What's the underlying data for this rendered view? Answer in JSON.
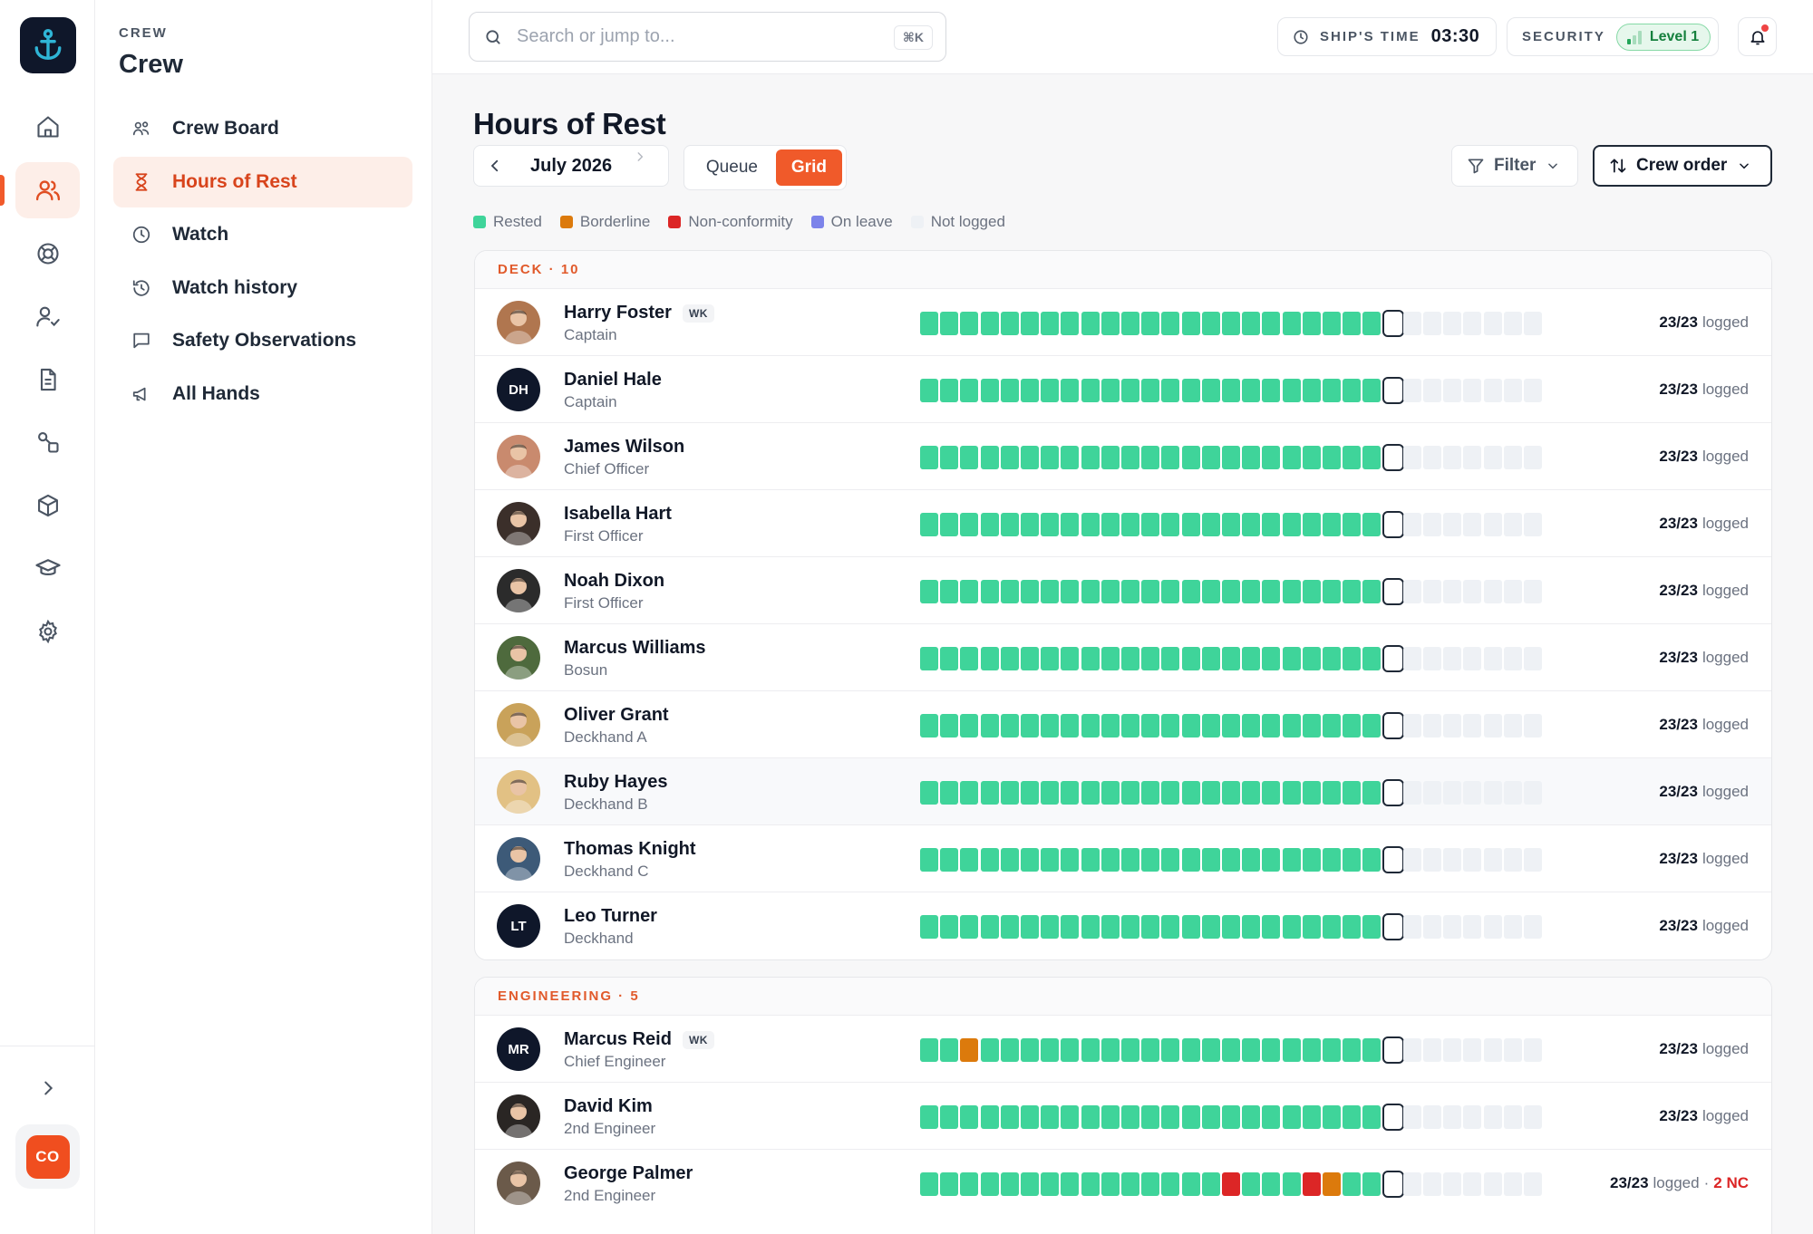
{
  "app": {
    "user_initials": "CO"
  },
  "colors": {
    "accent": "#f05a2a",
    "rested": "#3fd49a",
    "borderline": "#dc7a0c",
    "nonconformity": "#dc2626",
    "onleave": "#7c83ea",
    "notlogged": "#eef1f5"
  },
  "rail": {
    "items": [
      {
        "name": "home-icon",
        "active": false
      },
      {
        "name": "crew-icon",
        "active": true
      },
      {
        "name": "lifebuoy-icon",
        "active": false
      },
      {
        "name": "user-check-icon",
        "active": false
      },
      {
        "name": "document-icon",
        "active": false
      },
      {
        "name": "workflow-icon",
        "active": false
      },
      {
        "name": "cube-icon",
        "active": false
      },
      {
        "name": "graduation-cap-icon",
        "active": false
      },
      {
        "name": "settings-icon",
        "active": false
      }
    ]
  },
  "sidebar": {
    "eyebrow": "CREW",
    "title": "Crew",
    "items": [
      {
        "label": "Crew Board",
        "icon": "crew-board-icon",
        "active": false
      },
      {
        "label": "Hours of Rest",
        "icon": "hourglass-icon",
        "active": true
      },
      {
        "label": "Watch",
        "icon": "clock-icon",
        "active": false
      },
      {
        "label": "Watch history",
        "icon": "history-icon",
        "active": false
      },
      {
        "label": "Safety Observations",
        "icon": "message-icon",
        "active": false
      },
      {
        "label": "All Hands",
        "icon": "megaphone-icon",
        "active": false
      }
    ]
  },
  "topbar": {
    "search_placeholder": "Search or jump to...",
    "search_shortcut": "⌘K",
    "ships_time_label": "SHIP'S TIME",
    "ships_time_value": "03:30",
    "security_label": "SECURITY",
    "security_level": "Level 1"
  },
  "page": {
    "title": "Hours of Rest",
    "month": "July 2026",
    "view_tabs": [
      {
        "label": "Queue",
        "active": false
      },
      {
        "label": "Grid",
        "active": true
      }
    ],
    "filter_label": "Filter",
    "order_label": "Crew order",
    "logged_suffix": "logged"
  },
  "legend": [
    {
      "label": "Rested",
      "color": "#3fd49a"
    },
    {
      "label": "Borderline",
      "color": "#dc7a0c"
    },
    {
      "label": "Non-conformity",
      "color": "#dc2626"
    },
    {
      "label": "On leave",
      "color": "#7c83ea"
    },
    {
      "label": "Not logged",
      "color": "#eef1f5"
    }
  ],
  "groups": [
    {
      "header": "DECK · 10",
      "rows": [
        {
          "name": "Harry Foster",
          "badge": "WK",
          "role": "Captain",
          "avatar": "photo",
          "bg": "#b0764f",
          "days": "GGGGGGGGGGGGGGGGGGGGGGG",
          "logged": "23/23",
          "nc": ""
        },
        {
          "name": "Daniel Hale",
          "badge": "",
          "role": "Captain",
          "avatar": "DH",
          "bg": "#0f172a",
          "days": "GGGGGGGGGGGGGGGGGGGGGGG",
          "logged": "23/23",
          "nc": ""
        },
        {
          "name": "James Wilson",
          "badge": "",
          "role": "Chief Officer",
          "avatar": "photo",
          "bg": "#c98a6e",
          "days": "GGGGGGGGGGGGGGGGGGGGGGG",
          "logged": "23/23",
          "nc": ""
        },
        {
          "name": "Isabella Hart",
          "badge": "",
          "role": "First Officer",
          "avatar": "photo",
          "bg": "#3b2f2a",
          "days": "GGGGGGGGGGGGGGGGGGGGGGG",
          "logged": "23/23",
          "nc": ""
        },
        {
          "name": "Noah Dixon",
          "badge": "",
          "role": "First Officer",
          "avatar": "photo",
          "bg": "#2b2b2b",
          "days": "GGGGGGGGGGGGGGGGGGGGGGG",
          "logged": "23/23",
          "nc": ""
        },
        {
          "name": "Marcus Williams",
          "badge": "",
          "role": "Bosun",
          "avatar": "photo",
          "bg": "#4e6a3d",
          "days": "GGGGGGGGGGGGGGGGGGGGGGG",
          "logged": "23/23",
          "nc": ""
        },
        {
          "name": "Oliver Grant",
          "badge": "",
          "role": "Deckhand A",
          "avatar": "photo",
          "bg": "#c9a25a",
          "days": "GGGGGGGGGGGGGGGGGGGGGGG",
          "logged": "23/23",
          "nc": ""
        },
        {
          "name": "Ruby Hayes",
          "badge": "",
          "role": "Deckhand B",
          "avatar": "photo",
          "bg": "#e2c184",
          "days": "GGGGGGGGGGGGGGGGGGGGGGG",
          "logged": "23/23",
          "nc": "",
          "highlight": true
        },
        {
          "name": "Thomas Knight",
          "badge": "",
          "role": "Deckhand C",
          "avatar": "photo",
          "bg": "#3d5a78",
          "days": "GGGGGGGGGGGGGGGGGGGGGGG",
          "logged": "23/23",
          "nc": ""
        },
        {
          "name": "Leo Turner",
          "badge": "",
          "role": "Deckhand",
          "avatar": "LT",
          "bg": "#0f172a",
          "days": "GGGGGGGGGGGGGGGGGGGGGGG",
          "logged": "23/23",
          "nc": ""
        }
      ]
    },
    {
      "header": "ENGINEERING · 5",
      "rows": [
        {
          "name": "Marcus Reid",
          "badge": "WK",
          "role": "Chief Engineer",
          "avatar": "MR",
          "bg": "#0f172a",
          "days": "GGBGGGGGGGGGGGGGGGGGGGG",
          "logged": "23/23",
          "nc": ""
        },
        {
          "name": "David Kim",
          "badge": "",
          "role": "2nd Engineer",
          "avatar": "photo",
          "bg": "#2a2624",
          "days": "GGGGGGGGGGGGGGGGGGGGGGG",
          "logged": "23/23",
          "nc": ""
        },
        {
          "name": "George Palmer",
          "badge": "",
          "role": "2nd Engineer",
          "avatar": "photo",
          "bg": "#6b5a4a",
          "days": "GGGGGGGGGGGGGGGNGGGNBGG",
          "logged": "23/23",
          "nc": "2 NC"
        }
      ]
    }
  ]
}
